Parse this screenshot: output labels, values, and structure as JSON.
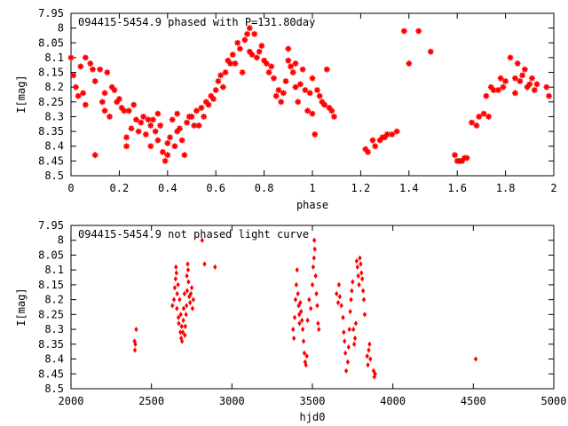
{
  "chart_data": [
    {
      "type": "scatter",
      "title": "094415-5454.9 phased with P=131.80day",
      "xlabel": "phase",
      "ylabel": "I[mag]",
      "xlim": [
        0,
        2
      ],
      "ylim": [
        7.95,
        8.5
      ],
      "y_inverted": true,
      "grid": false,
      "marker": "star",
      "color": "#ff0000",
      "xticks": [
        0,
        0.2,
        0.4,
        0.6,
        0.8,
        1,
        1.2,
        1.4,
        1.6,
        1.8,
        2
      ],
      "xtick_labels": [
        "0",
        "0.2",
        "0.4",
        "0.6",
        "0.8",
        "1",
        "1.2",
        "1.4",
        "1.6",
        "1.8",
        "2"
      ],
      "yticks": [
        7.95,
        8,
        8.05,
        8.1,
        8.15,
        8.2,
        8.25,
        8.3,
        8.35,
        8.4,
        8.45,
        8.5
      ],
      "ytick_labels": [
        "7.95",
        "8",
        "8.05",
        "8.1",
        "8.15",
        "8.2",
        "8.25",
        "8.3",
        "8.35",
        "8.4",
        "8.45",
        "8.5"
      ],
      "points": [
        [
          0.0,
          8.1
        ],
        [
          0.01,
          8.16
        ],
        [
          0.02,
          8.2
        ],
        [
          0.03,
          8.23
        ],
        [
          0.04,
          8.13
        ],
        [
          0.05,
          8.22
        ],
        [
          0.06,
          8.26
        ],
        [
          0.06,
          8.1
        ],
        [
          0.08,
          8.12
        ],
        [
          0.09,
          8.14
        ],
        [
          0.1,
          8.43
        ],
        [
          0.1,
          8.18
        ],
        [
          0.12,
          8.14
        ],
        [
          0.13,
          8.25
        ],
        [
          0.14,
          8.22
        ],
        [
          0.14,
          8.28
        ],
        [
          0.15,
          8.15
        ],
        [
          0.16,
          8.3
        ],
        [
          0.17,
          8.2
        ],
        [
          0.18,
          8.21
        ],
        [
          0.19,
          8.25
        ],
        [
          0.2,
          8.24
        ],
        [
          0.21,
          8.27
        ],
        [
          0.22,
          8.28
        ],
        [
          0.23,
          8.4
        ],
        [
          0.23,
          8.37
        ],
        [
          0.24,
          8.28
        ],
        [
          0.25,
          8.34
        ],
        [
          0.26,
          8.26
        ],
        [
          0.27,
          8.31
        ],
        [
          0.28,
          8.35
        ],
        [
          0.29,
          8.32
        ],
        [
          0.3,
          8.3
        ],
        [
          0.31,
          8.36
        ],
        [
          0.32,
          8.31
        ],
        [
          0.33,
          8.33
        ],
        [
          0.33,
          8.4
        ],
        [
          0.34,
          8.31
        ],
        [
          0.35,
          8.35
        ],
        [
          0.36,
          8.38
        ],
        [
          0.36,
          8.29
        ],
        [
          0.37,
          8.33
        ],
        [
          0.38,
          8.42
        ],
        [
          0.39,
          8.45
        ],
        [
          0.4,
          8.43
        ],
        [
          0.4,
          8.39
        ],
        [
          0.41,
          8.37
        ],
        [
          0.42,
          8.31
        ],
        [
          0.43,
          8.4
        ],
        [
          0.44,
          8.35
        ],
        [
          0.44,
          8.29
        ],
        [
          0.45,
          8.34
        ],
        [
          0.46,
          8.38
        ],
        [
          0.47,
          8.43
        ],
        [
          0.48,
          8.32
        ],
        [
          0.49,
          8.3
        ],
        [
          0.5,
          8.3
        ],
        [
          0.51,
          8.33
        ],
        [
          0.52,
          8.28
        ],
        [
          0.53,
          8.33
        ],
        [
          0.54,
          8.27
        ],
        [
          0.55,
          8.3
        ],
        [
          0.56,
          8.25
        ],
        [
          0.57,
          8.26
        ],
        [
          0.58,
          8.23
        ],
        [
          0.59,
          8.24
        ],
        [
          0.6,
          8.21
        ],
        [
          0.61,
          8.18
        ],
        [
          0.62,
          8.16
        ],
        [
          0.63,
          8.2
        ],
        [
          0.64,
          8.15
        ],
        [
          0.65,
          8.11
        ],
        [
          0.66,
          8.12
        ],
        [
          0.67,
          8.09
        ],
        [
          0.68,
          8.12
        ],
        [
          0.69,
          8.05
        ],
        [
          0.7,
          8.07
        ],
        [
          0.71,
          8.15
        ],
        [
          0.72,
          8.04
        ],
        [
          0.73,
          8.02
        ],
        [
          0.74,
          8.0
        ],
        [
          0.74,
          8.08
        ],
        [
          0.75,
          8.09
        ],
        [
          0.76,
          8.02
        ],
        [
          0.77,
          8.1
        ],
        [
          0.78,
          8.08
        ],
        [
          0.79,
          8.06
        ],
        [
          0.8,
          8.11
        ],
        [
          0.81,
          8.12
        ],
        [
          0.82,
          8.15
        ],
        [
          0.83,
          8.13
        ],
        [
          0.84,
          8.17
        ],
        [
          0.85,
          8.23
        ],
        [
          0.86,
          8.21
        ],
        [
          0.87,
          8.25
        ],
        [
          0.88,
          8.22
        ],
        [
          0.89,
          8.18
        ],
        [
          0.9,
          8.11
        ],
        [
          0.9,
          8.07
        ],
        [
          0.91,
          8.13
        ],
        [
          0.92,
          8.15
        ],
        [
          0.93,
          8.12
        ],
        [
          0.93,
          8.2
        ],
        [
          0.94,
          8.25
        ],
        [
          0.95,
          8.19
        ],
        [
          0.96,
          8.14
        ],
        [
          0.97,
          8.21
        ],
        [
          0.98,
          8.28
        ],
        [
          0.99,
          8.22
        ],
        [
          1.0,
          8.17
        ],
        [
          1.0,
          8.29
        ],
        [
          1.01,
          8.36
        ],
        [
          1.02,
          8.21
        ],
        [
          1.03,
          8.23
        ],
        [
          1.04,
          8.25
        ],
        [
          1.05,
          8.26
        ],
        [
          1.06,
          8.14
        ],
        [
          1.07,
          8.27
        ],
        [
          1.08,
          8.28
        ],
        [
          1.09,
          8.3
        ],
        [
          1.22,
          8.41
        ],
        [
          1.23,
          8.42
        ],
        [
          1.25,
          8.38
        ],
        [
          1.26,
          8.4
        ],
        [
          1.28,
          8.38
        ],
        [
          1.29,
          8.37
        ],
        [
          1.3,
          8.37
        ],
        [
          1.31,
          8.36
        ],
        [
          1.33,
          8.36
        ],
        [
          1.35,
          8.35
        ],
        [
          1.38,
          8.01
        ],
        [
          1.4,
          8.12
        ],
        [
          1.44,
          8.01
        ],
        [
          1.49,
          8.08
        ],
        [
          1.59,
          8.43
        ],
        [
          1.6,
          8.45
        ],
        [
          1.61,
          8.45
        ],
        [
          1.62,
          8.45
        ],
        [
          1.63,
          8.44
        ],
        [
          1.64,
          8.44
        ],
        [
          1.66,
          8.32
        ],
        [
          1.68,
          8.33
        ],
        [
          1.69,
          8.3
        ],
        [
          1.71,
          8.29
        ],
        [
          1.72,
          8.23
        ],
        [
          1.73,
          8.3
        ],
        [
          1.74,
          8.2
        ],
        [
          1.75,
          8.21
        ],
        [
          1.77,
          8.21
        ],
        [
          1.78,
          8.17
        ],
        [
          1.79,
          8.2
        ],
        [
          1.8,
          8.18
        ],
        [
          1.82,
          8.1
        ],
        [
          1.84,
          8.17
        ],
        [
          1.84,
          8.22
        ],
        [
          1.85,
          8.12
        ],
        [
          1.86,
          8.18
        ],
        [
          1.87,
          8.16
        ],
        [
          1.88,
          8.14
        ],
        [
          1.89,
          8.2
        ],
        [
          1.9,
          8.19
        ],
        [
          1.91,
          8.17
        ],
        [
          1.92,
          8.21
        ],
        [
          1.93,
          8.19
        ],
        [
          1.97,
          8.2
        ],
        [
          1.98,
          8.23
        ]
      ]
    },
    {
      "type": "scatter",
      "title": "094415-5454.9 not phased light curve",
      "xlabel": "hjd0",
      "ylabel": "I[mag]",
      "xlim": [
        2000,
        5000
      ],
      "ylim": [
        7.95,
        8.5
      ],
      "y_inverted": true,
      "grid": false,
      "marker": "diamond",
      "color": "#ff0000",
      "xticks": [
        2000,
        2500,
        3000,
        3500,
        4000,
        4500,
        5000
      ],
      "xtick_labels": [
        "2000",
        "2500",
        "3000",
        "3500",
        "4000",
        "4500",
        "5000"
      ],
      "yticks": [
        7.95,
        8,
        8.05,
        8.1,
        8.15,
        8.2,
        8.25,
        8.3,
        8.35,
        8.4,
        8.45,
        8.5
      ],
      "ytick_labels": [
        "7.95",
        "8",
        "8.05",
        "8.1",
        "8.15",
        "8.2",
        "8.25",
        "8.3",
        "8.35",
        "8.4",
        "8.45",
        "8.5"
      ],
      "points": [
        [
          2395,
          8.34
        ],
        [
          2397,
          8.37
        ],
        [
          2400,
          8.35
        ],
        [
          2405,
          8.3
        ],
        [
          2630,
          8.22
        ],
        [
          2640,
          8.2
        ],
        [
          2645,
          8.16
        ],
        [
          2650,
          8.13
        ],
        [
          2652,
          8.09
        ],
        [
          2655,
          8.11
        ],
        [
          2658,
          8.23
        ],
        [
          2660,
          8.18
        ],
        [
          2665,
          8.15
        ],
        [
          2668,
          8.26
        ],
        [
          2670,
          8.28
        ],
        [
          2675,
          8.2
        ],
        [
          2680,
          8.31
        ],
        [
          2682,
          8.25
        ],
        [
          2685,
          8.33
        ],
        [
          2688,
          8.29
        ],
        [
          2690,
          8.34
        ],
        [
          2695,
          8.31
        ],
        [
          2698,
          8.27
        ],
        [
          2700,
          8.23
        ],
        [
          2705,
          8.18
        ],
        [
          2708,
          8.32
        ],
        [
          2710,
          8.29
        ],
        [
          2715,
          8.25
        ],
        [
          2718,
          8.22
        ],
        [
          2720,
          8.12
        ],
        [
          2722,
          8.17
        ],
        [
          2725,
          8.08
        ],
        [
          2728,
          8.1
        ],
        [
          2730,
          8.14
        ],
        [
          2735,
          8.19
        ],
        [
          2740,
          8.21
        ],
        [
          2745,
          8.18
        ],
        [
          2750,
          8.16
        ],
        [
          2755,
          8.23
        ],
        [
          2760,
          8.2
        ],
        [
          2815,
          8.0
        ],
        [
          2830,
          8.08
        ],
        [
          2895,
          8.09
        ],
        [
          3380,
          8.3
        ],
        [
          3385,
          8.33
        ],
        [
          3390,
          8.26
        ],
        [
          3395,
          8.2
        ],
        [
          3400,
          8.15
        ],
        [
          3405,
          8.1
        ],
        [
          3410,
          8.18
        ],
        [
          3415,
          8.22
        ],
        [
          3418,
          8.25
        ],
        [
          3420,
          8.28
        ],
        [
          3425,
          8.21
        ],
        [
          3430,
          8.24
        ],
        [
          3435,
          8.27
        ],
        [
          3440,
          8.3
        ],
        [
          3445,
          8.34
        ],
        [
          3450,
          8.38
        ],
        [
          3455,
          8.41
        ],
        [
          3460,
          8.42
        ],
        [
          3465,
          8.39
        ],
        [
          3470,
          8.27
        ],
        [
          3480,
          8.2
        ],
        [
          3490,
          8.23
        ],
        [
          3500,
          8.15
        ],
        [
          3505,
          8.09
        ],
        [
          3510,
          8.06
        ],
        [
          3512,
          8.0
        ],
        [
          3515,
          8.03
        ],
        [
          3520,
          8.12
        ],
        [
          3525,
          8.18
        ],
        [
          3530,
          8.22
        ],
        [
          3535,
          8.28
        ],
        [
          3540,
          8.3
        ],
        [
          3650,
          8.18
        ],
        [
          3660,
          8.21
        ],
        [
          3665,
          8.15
        ],
        [
          3670,
          8.19
        ],
        [
          3680,
          8.22
        ],
        [
          3690,
          8.26
        ],
        [
          3695,
          8.31
        ],
        [
          3700,
          8.34
        ],
        [
          3705,
          8.38
        ],
        [
          3710,
          8.44
        ],
        [
          3720,
          8.41
        ],
        [
          3725,
          8.36
        ],
        [
          3730,
          8.3
        ],
        [
          3735,
          8.24
        ],
        [
          3740,
          8.2
        ],
        [
          3745,
          8.17
        ],
        [
          3750,
          8.14
        ],
        [
          3755,
          8.3
        ],
        [
          3760,
          8.35
        ],
        [
          3765,
          8.33
        ],
        [
          3770,
          8.28
        ],
        [
          3775,
          8.07
        ],
        [
          3780,
          8.09
        ],
        [
          3785,
          8.12
        ],
        [
          3790,
          8.15
        ],
        [
          3795,
          8.06
        ],
        [
          3800,
          8.08
        ],
        [
          3805,
          8.11
        ],
        [
          3810,
          8.13
        ],
        [
          3815,
          8.17
        ],
        [
          3820,
          8.2
        ],
        [
          3825,
          8.25
        ],
        [
          3840,
          8.39
        ],
        [
          3845,
          8.42
        ],
        [
          3850,
          8.37
        ],
        [
          3855,
          8.35
        ],
        [
          3860,
          8.4
        ],
        [
          3880,
          8.44
        ],
        [
          3885,
          8.46
        ],
        [
          3890,
          8.45
        ],
        [
          4515,
          8.4
        ]
      ]
    }
  ]
}
